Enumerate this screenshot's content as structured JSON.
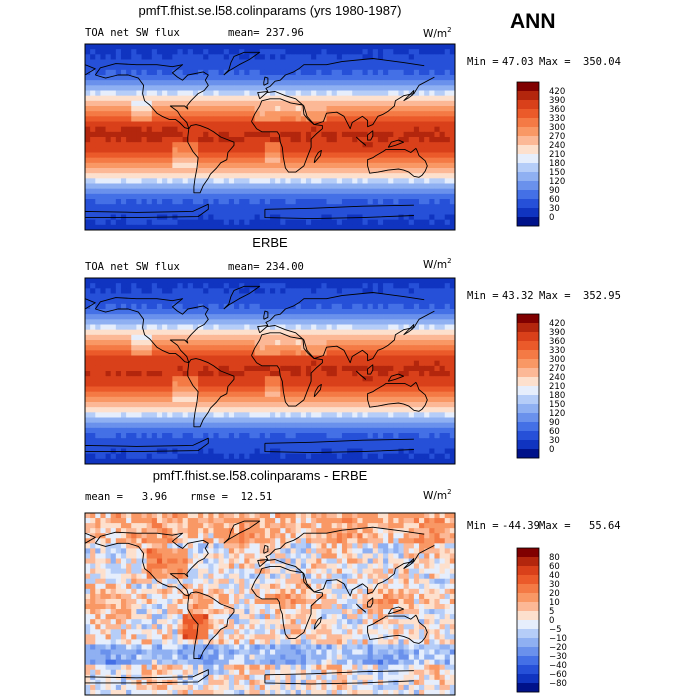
{
  "season": "ANN",
  "chart_data": [
    {
      "type": "heatmap",
      "panel_id": "model",
      "title": "pmfT.fhist.se.l58.colinparams (yrs 1980-1987)",
      "variable": "TOA net SW flux",
      "mean_label": "mean= 237.96",
      "units_base": "W/m",
      "units_exp": "2",
      "min_label": "Min =",
      "min_value": "47.03",
      "max_label": "Max =",
      "max_value": "350.04",
      "colorbar_levels": [
        "420",
        "390",
        "360",
        "330",
        "300",
        "270",
        "240",
        "210",
        "180",
        "150",
        "120",
        "90",
        "60",
        "30",
        "0"
      ],
      "colorbar_colors": [
        "#800000",
        "#b3260d",
        "#d9401a",
        "#eb5a2a",
        "#f47a45",
        "#f99865",
        "#fcb896",
        "#fde0cd",
        "#e6eefc",
        "#b5cdf8",
        "#8fb0f2",
        "#6a91ec",
        "#4470e6",
        "#2650d8",
        "#1034c0",
        "#00128a"
      ],
      "value_range": [
        0,
        420
      ],
      "grid_source": "zonal_sw"
    },
    {
      "type": "heatmap",
      "panel_id": "obs",
      "title": "ERBE",
      "variable": "TOA net SW flux",
      "mean_label": "mean= 234.00",
      "units_base": "W/m",
      "units_exp": "2",
      "min_label": "Min =",
      "min_value": "43.32",
      "max_label": "Max =",
      "max_value": "352.95",
      "colorbar_levels": [
        "420",
        "390",
        "360",
        "330",
        "300",
        "270",
        "240",
        "210",
        "180",
        "150",
        "120",
        "90",
        "60",
        "30",
        "0"
      ],
      "colorbar_colors": [
        "#800000",
        "#b3260d",
        "#d9401a",
        "#eb5a2a",
        "#f47a45",
        "#f99865",
        "#fcb896",
        "#fde0cd",
        "#e6eefc",
        "#b5cdf8",
        "#8fb0f2",
        "#6a91ec",
        "#4470e6",
        "#2650d8",
        "#1034c0",
        "#00128a"
      ],
      "value_range": [
        0,
        420
      ],
      "grid_source": "zonal_sw"
    },
    {
      "type": "heatmap",
      "panel_id": "diff",
      "title": "pmfT.fhist.se.l58.colinparams - ERBE",
      "mean_label": "mean =   3.96",
      "rmse_label": "rmse =  12.51",
      "units_base": "W/m",
      "units_exp": "2",
      "min_label": "Min =",
      "min_value": "-44.39",
      "max_label": "Max =",
      "max_value": "55.64",
      "colorbar_levels": [
        "80",
        "60",
        "40",
        "30",
        "20",
        "10",
        "5",
        "0",
        "−5",
        "−10",
        "−20",
        "−30",
        "−40",
        "−60",
        "−80"
      ],
      "colorbar_colors": [
        "#800000",
        "#b3260d",
        "#d9401a",
        "#eb5a2a",
        "#f47a45",
        "#f99865",
        "#fcb896",
        "#fde0cd",
        "#e6eefc",
        "#b5cdf8",
        "#8fb0f2",
        "#6a91ec",
        "#4470e6",
        "#2650d8",
        "#1034c0",
        "#00128a"
      ],
      "value_range": [
        -80,
        80
      ],
      "grid_source": "diff"
    }
  ]
}
